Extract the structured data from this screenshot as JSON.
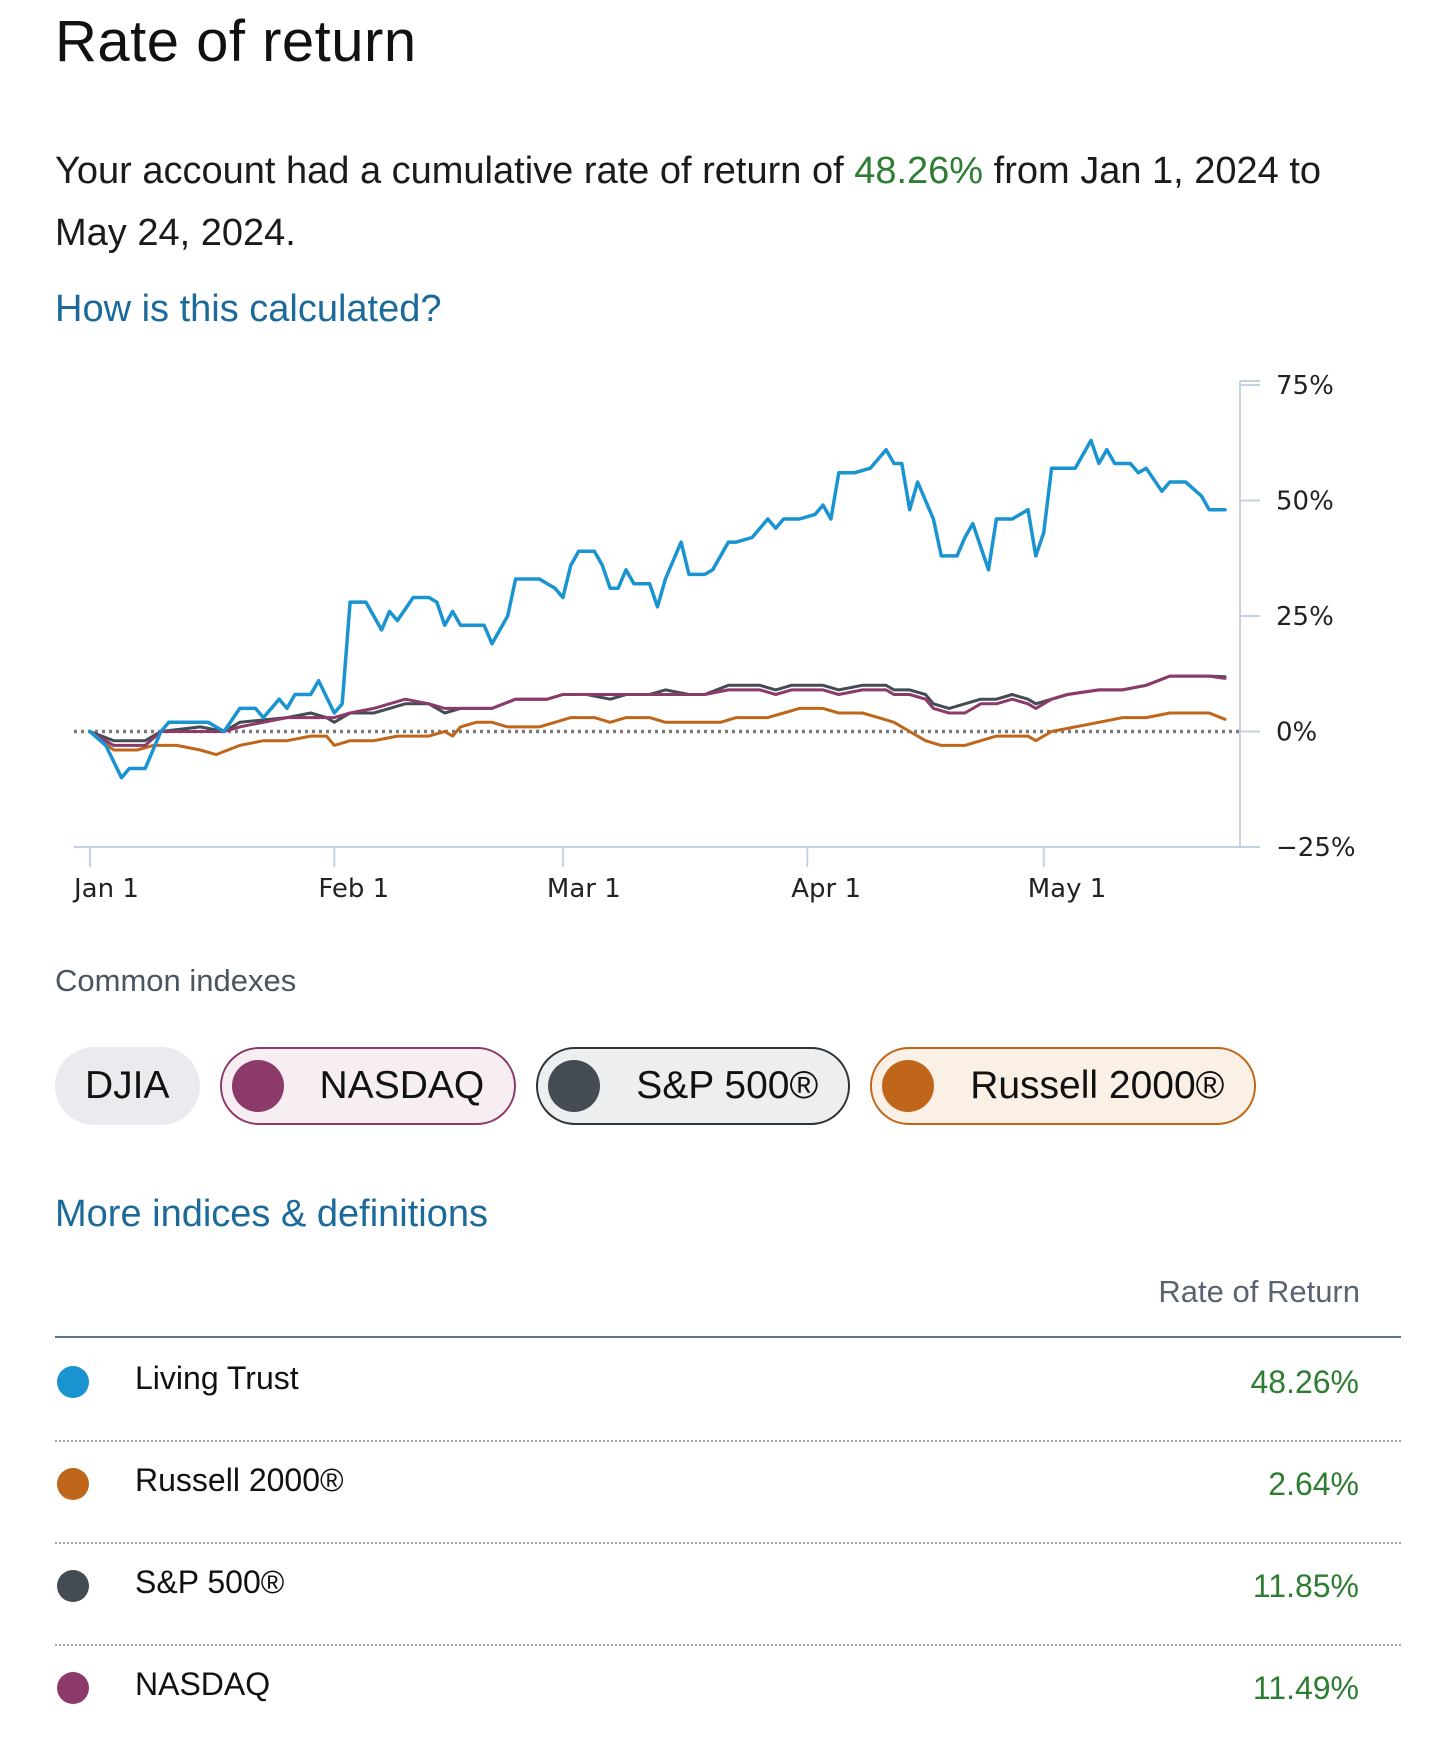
{
  "page": {
    "title": "Rate of return",
    "summary": {
      "prefix": "Your account had a cumulative rate of return of ",
      "percent": "48.26%",
      "suffix": " from Jan 1, 2024 to May 24, 2024."
    },
    "how_link": "How is this calculated?",
    "indexes_heading": "Common indexes",
    "more_link": "More indices & definitions",
    "table_header": "Rate of Return"
  },
  "chips": [
    {
      "label": "DJIA",
      "selected": false,
      "color": ""
    },
    {
      "label": "NASDAQ",
      "selected": true,
      "color": "#8c3a6a"
    },
    {
      "label": "S&P 500®",
      "selected": true,
      "color": "#444b52"
    },
    {
      "label": "Russell 2000®",
      "selected": true,
      "color": "#c0661a"
    }
  ],
  "rows": [
    {
      "name": "Living Trust",
      "value": "48.26%",
      "color": "#1a94d0"
    },
    {
      "name": "Russell 2000®",
      "value": "2.64%",
      "color": "#c0661a"
    },
    {
      "name": "S&P 500®",
      "value": "11.85%",
      "color": "#444b52"
    },
    {
      "name": "NASDAQ",
      "value": "11.49%",
      "color": "#8c3a6a"
    }
  ],
  "chart_data": {
    "type": "line",
    "title": "",
    "xlabel": "",
    "ylabel": "",
    "x_range_days": [
      0,
      144
    ],
    "ylim": [
      -25,
      75
    ],
    "y_ticks": [
      75,
      50,
      25,
      0,
      -25
    ],
    "y_tick_labels": [
      "75%",
      "50%",
      "25%",
      "0%",
      "−25%"
    ],
    "x_ticks": [
      {
        "day": 0,
        "label": "Jan 1"
      },
      {
        "day": 31,
        "label": "Feb 1"
      },
      {
        "day": 60,
        "label": "Mar 1"
      },
      {
        "day": 91,
        "label": "Apr 1"
      },
      {
        "day": 121,
        "label": "May 1"
      }
    ],
    "zero_line": "dotted",
    "series": [
      {
        "name": "Living Trust",
        "color": "#1a94d0",
        "points": [
          [
            0,
            0
          ],
          [
            2,
            -3
          ],
          [
            4,
            -10
          ],
          [
            5,
            -8
          ],
          [
            7,
            -8
          ],
          [
            9,
            0
          ],
          [
            10,
            2
          ],
          [
            12,
            2
          ],
          [
            15,
            2
          ],
          [
            17,
            0
          ],
          [
            19,
            5
          ],
          [
            21,
            5
          ],
          [
            22,
            3
          ],
          [
            24,
            7
          ],
          [
            25,
            5
          ],
          [
            26,
            8
          ],
          [
            28,
            8
          ],
          [
            29,
            11
          ],
          [
            31,
            4
          ],
          [
            32,
            6
          ],
          [
            33,
            28
          ],
          [
            35,
            28
          ],
          [
            37,
            22
          ],
          [
            38,
            26
          ],
          [
            39,
            24
          ],
          [
            41,
            29
          ],
          [
            43,
            29
          ],
          [
            44,
            28
          ],
          [
            45,
            23
          ],
          [
            46,
            26
          ],
          [
            47,
            23
          ],
          [
            50,
            23
          ],
          [
            51,
            19
          ],
          [
            53,
            25
          ],
          [
            54,
            33
          ],
          [
            57,
            33
          ],
          [
            59,
            31
          ],
          [
            60,
            29
          ],
          [
            61,
            36
          ],
          [
            62,
            39
          ],
          [
            64,
            39
          ],
          [
            65,
            36
          ],
          [
            66,
            31
          ],
          [
            67,
            31
          ],
          [
            68,
            35
          ],
          [
            69,
            32
          ],
          [
            71,
            32
          ],
          [
            72,
            27
          ],
          [
            73,
            33
          ],
          [
            75,
            41
          ],
          [
            76,
            34
          ],
          [
            78,
            34
          ],
          [
            79,
            35
          ],
          [
            81,
            41
          ],
          [
            82,
            41
          ],
          [
            84,
            42
          ],
          [
            86,
            46
          ],
          [
            87,
            44
          ],
          [
            88,
            46
          ],
          [
            90,
            46
          ],
          [
            92,
            47
          ],
          [
            93,
            49
          ],
          [
            94,
            46
          ],
          [
            95,
            56
          ],
          [
            97,
            56
          ],
          [
            99,
            57
          ],
          [
            101,
            61
          ],
          [
            102,
            58
          ],
          [
            103,
            58
          ],
          [
            104,
            48
          ],
          [
            105,
            54
          ],
          [
            107,
            46
          ],
          [
            108,
            38
          ],
          [
            110,
            38
          ],
          [
            111,
            42
          ],
          [
            112,
            45
          ],
          [
            114,
            35
          ],
          [
            115,
            46
          ],
          [
            117,
            46
          ],
          [
            119,
            48
          ],
          [
            120,
            38
          ],
          [
            121,
            43
          ],
          [
            122,
            57
          ],
          [
            125,
            57
          ],
          [
            127,
            63
          ],
          [
            128,
            58
          ],
          [
            129,
            61
          ],
          [
            130,
            58
          ],
          [
            132,
            58
          ],
          [
            133,
            56
          ],
          [
            134,
            57
          ],
          [
            136,
            52
          ],
          [
            137,
            54
          ],
          [
            139,
            54
          ],
          [
            141,
            51
          ],
          [
            142,
            48
          ],
          [
            144,
            48
          ]
        ]
      },
      {
        "name": "S&P 500®",
        "color": "#444b52",
        "points": [
          [
            0,
            0
          ],
          [
            3,
            -2
          ],
          [
            7,
            -2
          ],
          [
            9,
            0
          ],
          [
            14,
            1
          ],
          [
            17,
            0
          ],
          [
            19,
            2
          ],
          [
            25,
            3
          ],
          [
            28,
            4
          ],
          [
            30,
            3
          ],
          [
            31,
            2
          ],
          [
            33,
            4
          ],
          [
            36,
            4
          ],
          [
            40,
            6
          ],
          [
            43,
            6
          ],
          [
            45,
            4
          ],
          [
            47,
            5
          ],
          [
            51,
            5
          ],
          [
            54,
            7
          ],
          [
            58,
            7
          ],
          [
            60,
            8
          ],
          [
            63,
            8
          ],
          [
            66,
            7
          ],
          [
            68,
            8
          ],
          [
            71,
            8
          ],
          [
            73,
            9
          ],
          [
            76,
            8
          ],
          [
            78,
            8
          ],
          [
            81,
            10
          ],
          [
            85,
            10
          ],
          [
            87,
            9
          ],
          [
            89,
            10
          ],
          [
            93,
            10
          ],
          [
            95,
            9
          ],
          [
            98,
            10
          ],
          [
            101,
            10
          ],
          [
            102,
            9
          ],
          [
            104,
            9
          ],
          [
            106,
            8
          ],
          [
            107,
            6
          ],
          [
            109,
            5
          ],
          [
            111,
            6
          ],
          [
            113,
            7
          ],
          [
            115,
            7
          ],
          [
            117,
            8
          ],
          [
            119,
            7
          ],
          [
            120,
            6
          ],
          [
            122,
            7
          ],
          [
            124,
            8
          ],
          [
            128,
            9
          ],
          [
            131,
            9
          ],
          [
            134,
            10
          ],
          [
            137,
            12
          ],
          [
            140,
            12
          ],
          [
            142,
            12
          ],
          [
            144,
            11.85
          ]
        ]
      },
      {
        "name": "NASDAQ",
        "color": "#8c3a6a",
        "points": [
          [
            0,
            0
          ],
          [
            3,
            -3
          ],
          [
            7,
            -3
          ],
          [
            9,
            0
          ],
          [
            14,
            0
          ],
          [
            17,
            0
          ],
          [
            19,
            1
          ],
          [
            25,
            3
          ],
          [
            28,
            3
          ],
          [
            30,
            3
          ],
          [
            31,
            3
          ],
          [
            33,
            4
          ],
          [
            36,
            5
          ],
          [
            40,
            7
          ],
          [
            43,
            6
          ],
          [
            45,
            5
          ],
          [
            47,
            5
          ],
          [
            51,
            5
          ],
          [
            54,
            7
          ],
          [
            58,
            7
          ],
          [
            60,
            8
          ],
          [
            63,
            8
          ],
          [
            66,
            8
          ],
          [
            68,
            8
          ],
          [
            71,
            8
          ],
          [
            73,
            8
          ],
          [
            76,
            8
          ],
          [
            78,
            8
          ],
          [
            81,
            9
          ],
          [
            85,
            9
          ],
          [
            87,
            8
          ],
          [
            89,
            9
          ],
          [
            93,
            9
          ],
          [
            95,
            8
          ],
          [
            98,
            9
          ],
          [
            101,
            9
          ],
          [
            102,
            8
          ],
          [
            104,
            8
          ],
          [
            106,
            7
          ],
          [
            107,
            5
          ],
          [
            109,
            4
          ],
          [
            111,
            4
          ],
          [
            113,
            6
          ],
          [
            115,
            6
          ],
          [
            117,
            7
          ],
          [
            119,
            6
          ],
          [
            120,
            5
          ],
          [
            122,
            7
          ],
          [
            124,
            8
          ],
          [
            128,
            9
          ],
          [
            131,
            9
          ],
          [
            134,
            10
          ],
          [
            137,
            12
          ],
          [
            140,
            12
          ],
          [
            142,
            12
          ],
          [
            144,
            11.49
          ]
        ]
      },
      {
        "name": "Russell 2000®",
        "color": "#c0661a",
        "points": [
          [
            0,
            0
          ],
          [
            3,
            -4
          ],
          [
            6,
            -4
          ],
          [
            8,
            -3
          ],
          [
            11,
            -3
          ],
          [
            14,
            -4
          ],
          [
            16,
            -5
          ],
          [
            19,
            -3
          ],
          [
            22,
            -2
          ],
          [
            25,
            -2
          ],
          [
            28,
            -1
          ],
          [
            30,
            -1
          ],
          [
            31,
            -3
          ],
          [
            33,
            -2
          ],
          [
            36,
            -2
          ],
          [
            39,
            -1
          ],
          [
            41,
            -1
          ],
          [
            43,
            -1
          ],
          [
            45,
            0
          ],
          [
            46,
            -1
          ],
          [
            47,
            1
          ],
          [
            49,
            2
          ],
          [
            51,
            2
          ],
          [
            53,
            1
          ],
          [
            55,
            1
          ],
          [
            57,
            1
          ],
          [
            59,
            2
          ],
          [
            61,
            3
          ],
          [
            64,
            3
          ],
          [
            66,
            2
          ],
          [
            68,
            3
          ],
          [
            71,
            3
          ],
          [
            73,
            2
          ],
          [
            76,
            2
          ],
          [
            78,
            2
          ],
          [
            80,
            2
          ],
          [
            82,
            3
          ],
          [
            84,
            3
          ],
          [
            86,
            3
          ],
          [
            88,
            4
          ],
          [
            90,
            5
          ],
          [
            93,
            5
          ],
          [
            95,
            4
          ],
          [
            98,
            4
          ],
          [
            100,
            3
          ],
          [
            102,
            2
          ],
          [
            104,
            0
          ],
          [
            106,
            -2
          ],
          [
            108,
            -3
          ],
          [
            111,
            -3
          ],
          [
            113,
            -2
          ],
          [
            115,
            -1
          ],
          [
            117,
            -1
          ],
          [
            119,
            -1
          ],
          [
            120,
            -2
          ],
          [
            122,
            0
          ],
          [
            125,
            1
          ],
          [
            128,
            2
          ],
          [
            131,
            3
          ],
          [
            134,
            3
          ],
          [
            137,
            4
          ],
          [
            140,
            4
          ],
          [
            142,
            4
          ],
          [
            144,
            2.64
          ]
        ]
      }
    ]
  }
}
